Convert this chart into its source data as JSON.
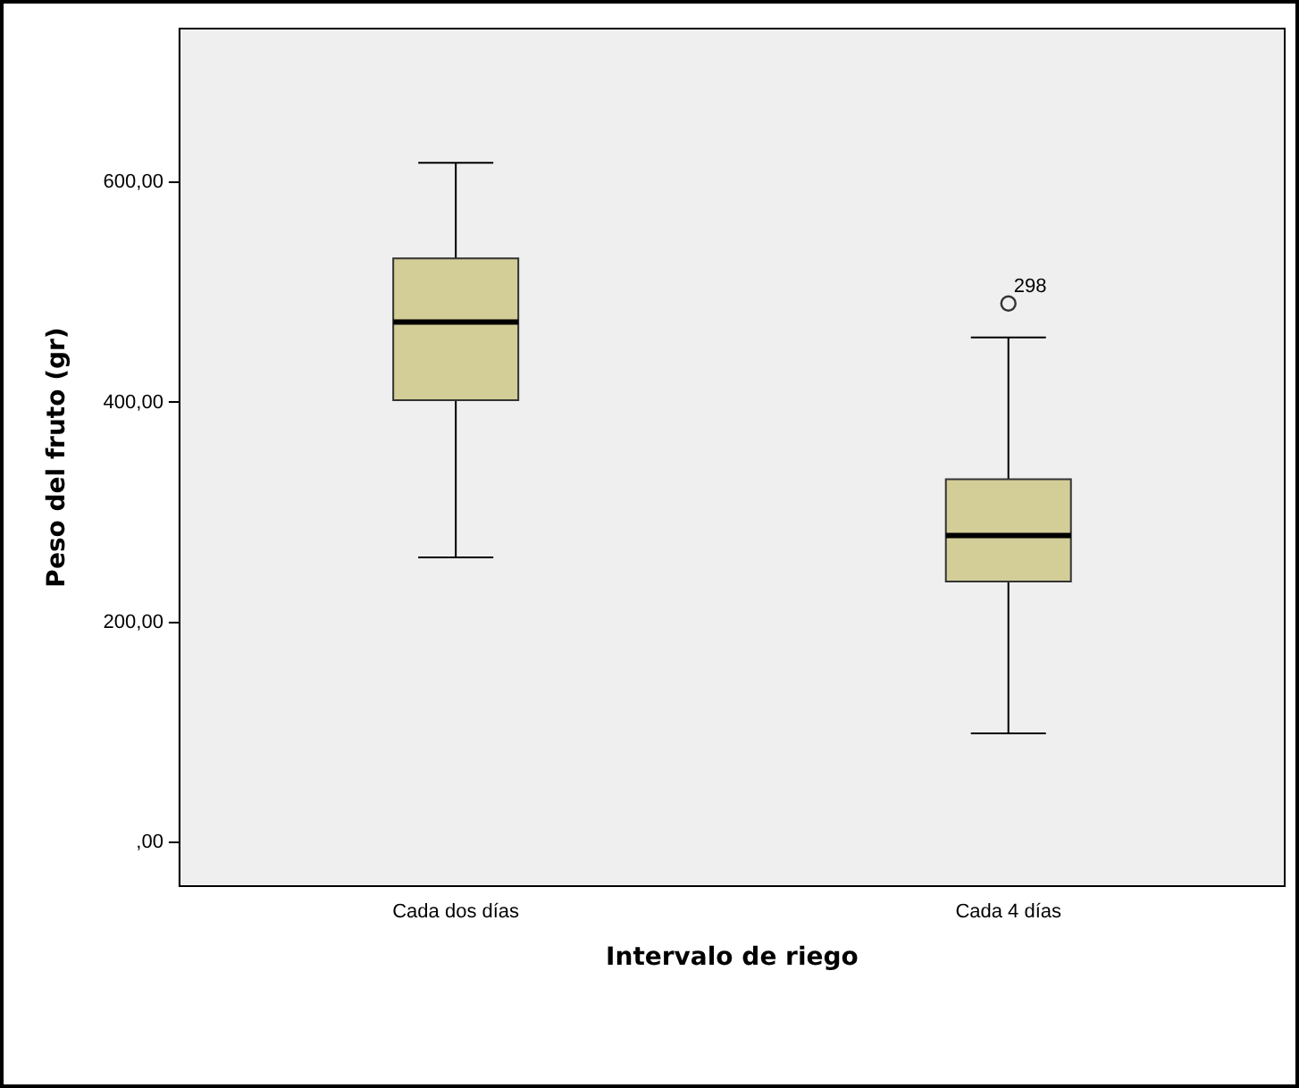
{
  "chart_data": {
    "type": "box",
    "xlabel": "Intervalo de riego",
    "ylabel": "Peso del fruto (gr)",
    "categories": [
      "Cada dos días",
      "Cada 4 días"
    ],
    "boxes": [
      {
        "low": 259,
        "q1": 402,
        "median": 473,
        "q3": 531,
        "high": 618
      },
      {
        "low": 99,
        "q1": 237,
        "median": 279,
        "q3": 330,
        "high": 459,
        "outliers": [
          490
        ]
      }
    ],
    "color": "#d3ce98",
    "ylim": [
      -40,
      740
    ],
    "yticks": [
      {
        "value": 0,
        "label": ",00"
      },
      {
        "value": 200,
        "label": "200,00"
      },
      {
        "value": 400,
        "label": "400,00"
      },
      {
        "value": 600,
        "label": "600,00"
      }
    ],
    "grid": false,
    "legend": false,
    "annotations": [
      "298"
    ]
  }
}
